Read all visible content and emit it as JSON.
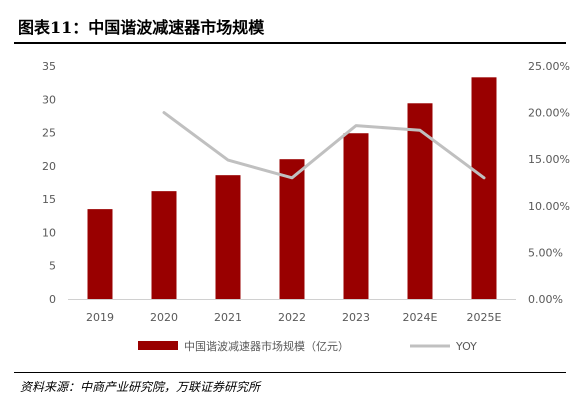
{
  "header": {
    "title": "图表11：中国谐波减速器市场规模"
  },
  "footer": {
    "source": "资料来源：中商产业研究院，万联证券研究所"
  },
  "chart_data": {
    "type": "bar",
    "categories": [
      "2019",
      "2020",
      "2021",
      "2022",
      "2023",
      "2024E",
      "2025E"
    ],
    "series": [
      {
        "name": "中国谐波减速器市场规模（亿元）",
        "type": "bar",
        "axis": "left",
        "values": [
          13.5,
          16.2,
          18.6,
          21.0,
          24.9,
          29.4,
          33.3
        ]
      },
      {
        "name": "YOY",
        "type": "line",
        "axis": "right",
        "values": [
          null,
          0.2,
          0.149,
          0.13,
          0.186,
          0.181,
          0.13
        ]
      }
    ],
    "y_left": {
      "ylim": [
        0,
        35
      ],
      "ticks": [
        "0",
        "5",
        "10",
        "15",
        "20",
        "25",
        "30",
        "35"
      ]
    },
    "y_right": {
      "ylim": [
        0,
        0.25
      ],
      "ticks": [
        "0.00%",
        "5.00%",
        "10.00%",
        "15.00%",
        "20.00%",
        "25.00%"
      ]
    },
    "grid": false,
    "legend_position": "bottom",
    "colors": {
      "bar": "#990000",
      "line": "#c0c0c0",
      "axis": "#d0d0d0",
      "text": "#595959"
    }
  }
}
